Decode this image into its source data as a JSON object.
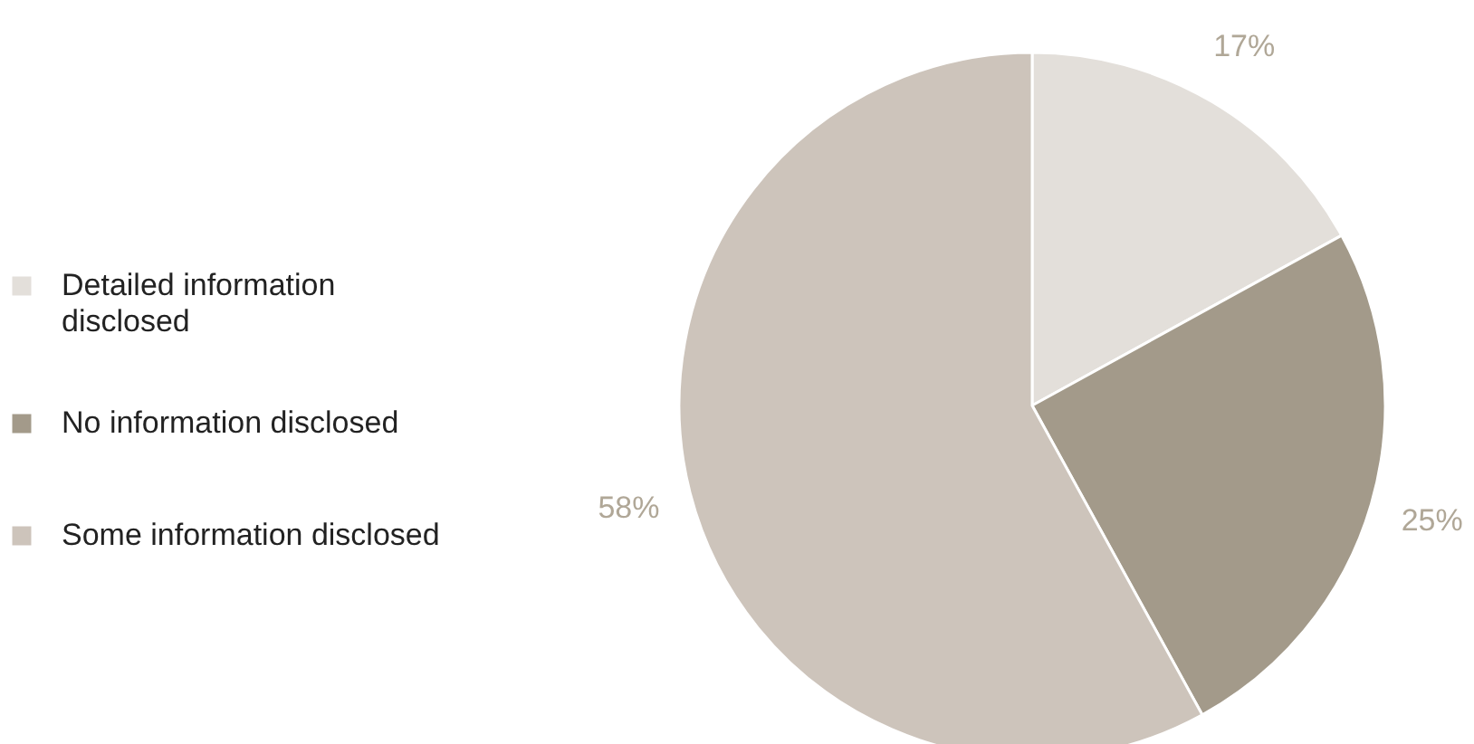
{
  "chart_data": {
    "type": "pie",
    "categories": [
      "Detailed information disclosed",
      "No information disclosed",
      "Some information disclosed"
    ],
    "values": [
      17,
      25,
      58
    ],
    "colors": [
      "#e3dfda",
      "#a39a8a",
      "#cdc4bb"
    ],
    "value_labels": [
      "17%",
      "25%",
      "58%"
    ],
    "legend": "left"
  }
}
